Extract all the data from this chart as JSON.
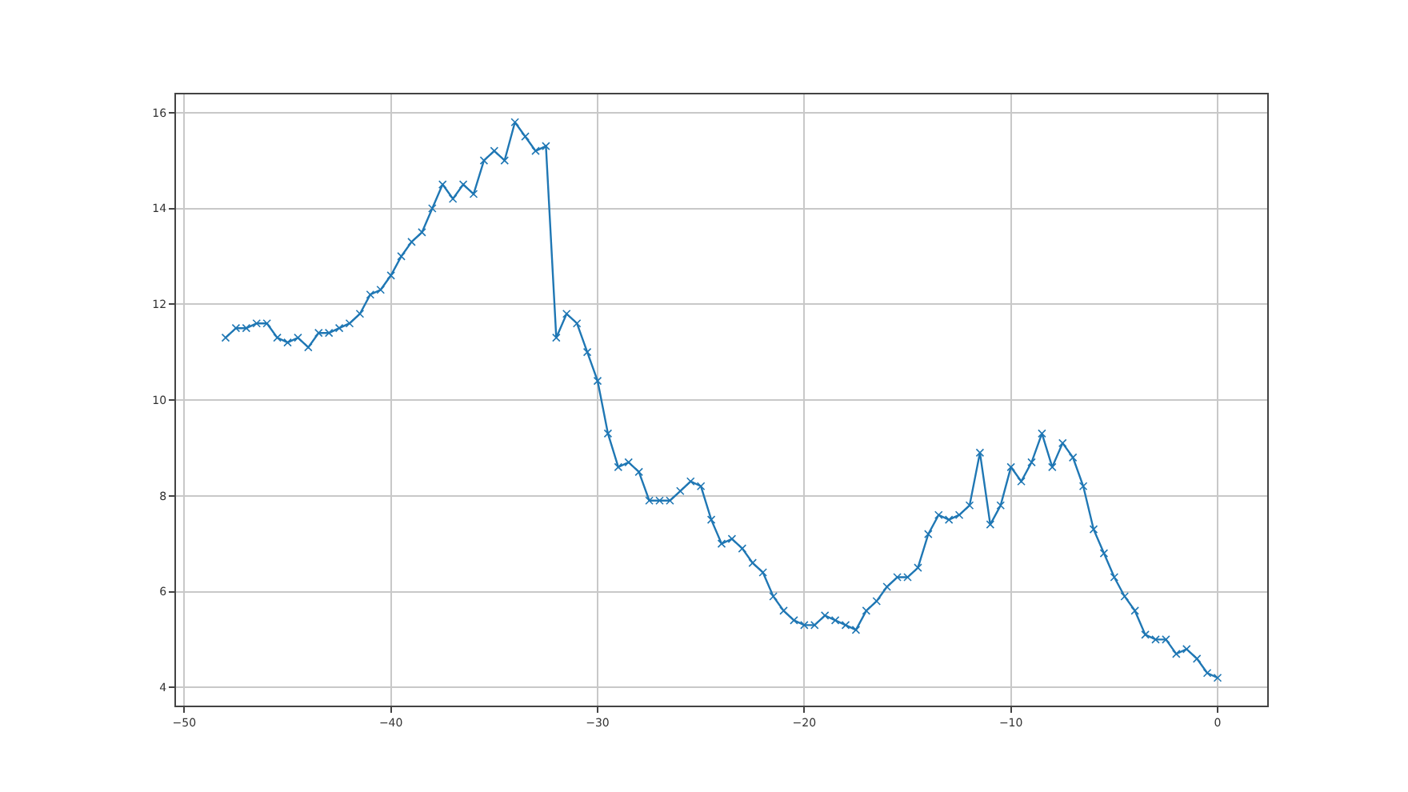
{
  "chart_data": {
    "type": "line",
    "x": [
      -48,
      -47.5,
      -47,
      -46.5,
      -46,
      -45.5,
      -45,
      -44.5,
      -44,
      -43.5,
      -43,
      -42.5,
      -42,
      -41.5,
      -41,
      -40.5,
      -40,
      -39.5,
      -39,
      -38.5,
      -38,
      -37.5,
      -37,
      -36.5,
      -36,
      -35.5,
      -35,
      -34.5,
      -34,
      -33.5,
      -33,
      -32.5,
      -32,
      -31.5,
      -31,
      -30.5,
      -30,
      -29.5,
      -29,
      -28.5,
      -28,
      -27.5,
      -27,
      -26.5,
      -26,
      -25.5,
      -25,
      -24.5,
      -24,
      -23.5,
      -23,
      -22.5,
      -22,
      -21.5,
      -21,
      -20.5,
      -20,
      -19.5,
      -19,
      -18.5,
      -18,
      -17.5,
      -17,
      -16.5,
      -16,
      -15.5,
      -15,
      -14.5,
      -14,
      -13.5,
      -13,
      -12.5,
      -12,
      -11.5,
      -11,
      -10.5,
      -10,
      -9.5,
      -9,
      -8.5,
      -8,
      -7.5,
      -7,
      -6.5,
      -6,
      -5.5,
      -5,
      -4.5,
      -4,
      -3.5,
      -3,
      -2.5,
      -2,
      -1.5,
      -1,
      -0.5,
      0
    ],
    "series": [
      {
        "color": "#1f77b4",
        "values": [
          11.3,
          11.5,
          11.5,
          11.6,
          11.6,
          11.3,
          11.2,
          11.3,
          11.1,
          11.4,
          11.4,
          11.5,
          11.6,
          11.8,
          12.2,
          12.3,
          12.6,
          13.0,
          13.3,
          13.5,
          14.0,
          14.5,
          14.2,
          14.5,
          14.3,
          15.0,
          15.2,
          15.0,
          15.8,
          15.5,
          15.2,
          15.3,
          11.3,
          11.8,
          11.6,
          11.0,
          10.4,
          9.3,
          8.6,
          8.7,
          8.5,
          7.9,
          7.9,
          7.9,
          8.1,
          8.3,
          8.2,
          7.5,
          7.0,
          7.1,
          6.9,
          6.6,
          6.4,
          5.9,
          5.6,
          5.4,
          5.3,
          5.3,
          5.5,
          5.4,
          5.3,
          5.2,
          5.6,
          5.8,
          6.1,
          6.3,
          6.3,
          6.5,
          7.2,
          7.6,
          7.5,
          7.6,
          7.8,
          8.9,
          7.4,
          7.8,
          8.6,
          8.3,
          8.7,
          9.3,
          8.6,
          9.1,
          8.8,
          8.2,
          7.3,
          6.8,
          6.3,
          5.9,
          5.6,
          5.1,
          5.0,
          5.0,
          4.7,
          4.8,
          4.6,
          4.3,
          4.2
        ]
      }
    ],
    "xlim": [
      -50.4,
      2.4
    ],
    "xticks": [
      {
        "value": -50,
        "label": "−50"
      },
      {
        "value": -40,
        "label": "−40"
      },
      {
        "value": -30,
        "label": "−30"
      },
      {
        "value": -20,
        "label": "−20"
      },
      {
        "value": -10,
        "label": "−10"
      },
      0
    ],
    "ylim": [
      3.62,
      16.38
    ],
    "yticks": [
      4,
      6,
      8,
      10,
      12,
      14,
      16
    ],
    "grid": true,
    "marker": "cross",
    "line_style": "solid"
  }
}
